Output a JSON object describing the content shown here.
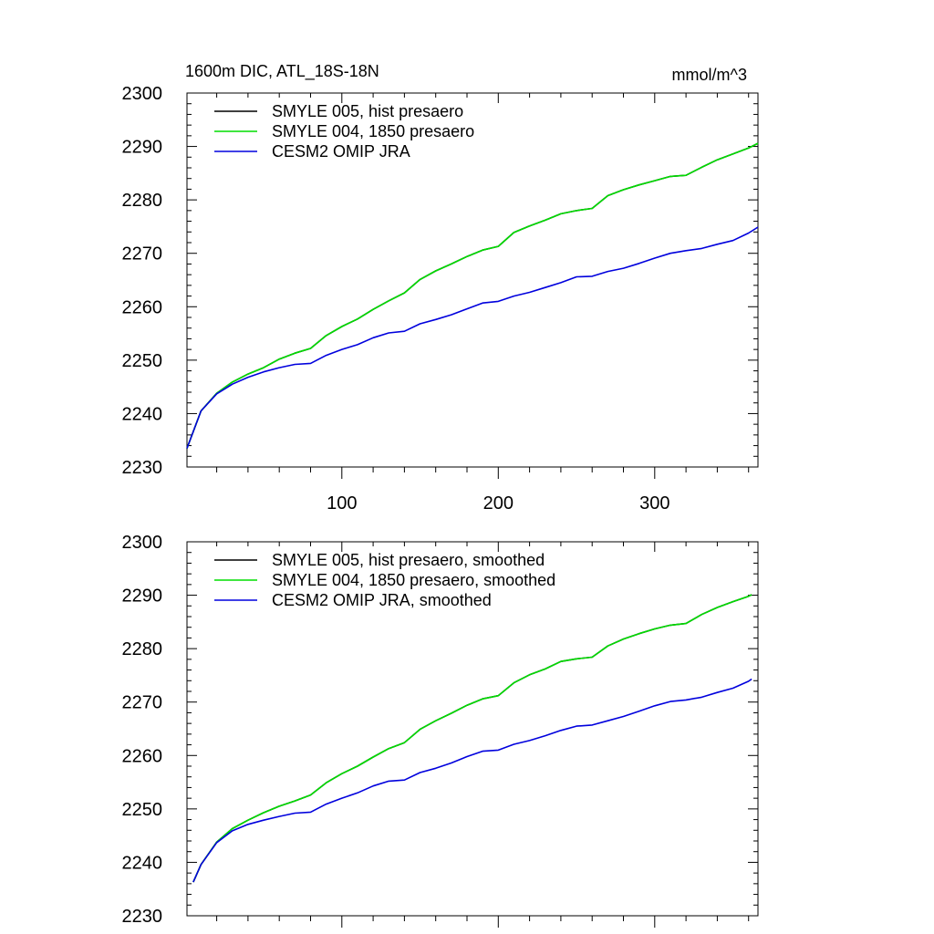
{
  "chart_data": [
    {
      "type": "line",
      "title": "1600m DIC, ATL_18S-18N",
      "units": "mmol/m^3",
      "xlim": [
        1,
        366
      ],
      "ylim": [
        2230,
        2300
      ],
      "xticks": [
        100,
        200,
        300
      ],
      "yticks": [
        2230,
        2240,
        2250,
        2260,
        2270,
        2280,
        2290,
        2300
      ],
      "legend_position": "top-left",
      "series": [
        {
          "name": "SMYLE 005, hist presaero",
          "color": "#000000",
          "x": [
            1,
            10,
            20,
            30,
            40,
            50,
            60,
            70,
            80,
            90,
            100,
            110,
            120,
            130,
            140,
            150,
            160,
            170,
            180,
            190,
            200,
            210,
            220,
            230,
            240,
            250,
            260,
            270,
            280,
            290,
            300,
            310,
            320,
            330,
            340,
            350,
            360,
            366
          ],
          "values": [
            2233.5,
            2240.5,
            2243.8,
            2245.9,
            2247.4,
            2248.6,
            2250.2,
            2251.3,
            2252.2,
            2254.6,
            2256.3,
            2257.7,
            2259.5,
            2261.1,
            2262.6,
            2265.1,
            2266.7,
            2268.0,
            2269.4,
            2270.6,
            2271.3,
            2273.9,
            2275.1,
            2276.2,
            2277.4,
            2278.0,
            2278.4,
            2280.8,
            2281.9,
            2282.8,
            2283.6,
            2284.4,
            2284.6,
            2286.1,
            2287.5,
            2288.6,
            2289.7,
            2290.6
          ]
        },
        {
          "name": "SMYLE 004, 1850 presaero",
          "color": "#00dd00",
          "x": [
            1,
            10,
            20,
            30,
            40,
            50,
            60,
            70,
            80,
            90,
            100,
            110,
            120,
            130,
            140,
            150,
            160,
            170,
            180,
            190,
            200,
            210,
            220,
            230,
            240,
            250,
            260,
            270,
            280,
            290,
            300,
            310,
            320,
            330,
            340,
            350,
            360,
            366
          ],
          "values": [
            2233.5,
            2240.5,
            2243.8,
            2245.9,
            2247.4,
            2248.6,
            2250.2,
            2251.3,
            2252.2,
            2254.6,
            2256.3,
            2257.7,
            2259.5,
            2261.1,
            2262.6,
            2265.1,
            2266.7,
            2268.0,
            2269.4,
            2270.6,
            2271.3,
            2273.9,
            2275.1,
            2276.2,
            2277.4,
            2278.0,
            2278.4,
            2280.8,
            2281.9,
            2282.8,
            2283.6,
            2284.4,
            2284.6,
            2286.1,
            2287.5,
            2288.6,
            2289.7,
            2290.6
          ]
        },
        {
          "name": "CESM2 OMIP JRA",
          "color": "#0000dd",
          "x": [
            1,
            10,
            20,
            30,
            40,
            50,
            60,
            70,
            80,
            90,
            100,
            110,
            120,
            130,
            140,
            150,
            160,
            170,
            180,
            190,
            200,
            210,
            220,
            230,
            240,
            250,
            260,
            270,
            280,
            290,
            300,
            310,
            320,
            330,
            340,
            350,
            360,
            366
          ],
          "values": [
            2233.5,
            2240.5,
            2243.7,
            2245.5,
            2246.8,
            2247.8,
            2248.6,
            2249.2,
            2249.4,
            2250.9,
            2252.0,
            2252.9,
            2254.2,
            2255.1,
            2255.4,
            2256.8,
            2257.6,
            2258.5,
            2259.6,
            2260.7,
            2261.0,
            2262.0,
            2262.7,
            2263.6,
            2264.5,
            2265.6,
            2265.7,
            2266.6,
            2267.2,
            2268.1,
            2269.1,
            2270.0,
            2270.5,
            2270.9,
            2271.7,
            2272.4,
            2273.8,
            2274.9
          ]
        }
      ]
    },
    {
      "type": "line",
      "xlim": [
        1,
        366
      ],
      "ylim": [
        2230,
        2300
      ],
      "xticks": [
        100,
        200,
        300
      ],
      "yticks": [
        2230,
        2240,
        2250,
        2260,
        2270,
        2280,
        2290,
        2300
      ],
      "legend_position": "top-left",
      "series": [
        {
          "name": "SMYLE 005, hist presaero, smoothed",
          "color": "#000000",
          "x": [
            5,
            10,
            20,
            30,
            40,
            50,
            60,
            70,
            80,
            90,
            100,
            110,
            120,
            130,
            140,
            150,
            160,
            170,
            180,
            190,
            200,
            210,
            220,
            230,
            240,
            250,
            260,
            270,
            280,
            290,
            300,
            310,
            320,
            330,
            340,
            350,
            360,
            362
          ],
          "values": [
            2236.3,
            2239.6,
            2243.8,
            2246.3,
            2247.9,
            2249.3,
            2250.5,
            2251.5,
            2252.6,
            2254.9,
            2256.6,
            2258.0,
            2259.7,
            2261.3,
            2262.4,
            2264.9,
            2266.5,
            2267.9,
            2269.4,
            2270.6,
            2271.2,
            2273.6,
            2275.1,
            2276.2,
            2277.6,
            2278.1,
            2278.4,
            2280.5,
            2281.8,
            2282.8,
            2283.7,
            2284.4,
            2284.7,
            2286.4,
            2287.7,
            2288.8,
            2289.8,
            2290.1
          ]
        },
        {
          "name": "SMYLE 004, 1850 presaero, smoothed",
          "color": "#00dd00",
          "x": [
            5,
            10,
            20,
            30,
            40,
            50,
            60,
            70,
            80,
            90,
            100,
            110,
            120,
            130,
            140,
            150,
            160,
            170,
            180,
            190,
            200,
            210,
            220,
            230,
            240,
            250,
            260,
            270,
            280,
            290,
            300,
            310,
            320,
            330,
            340,
            350,
            360,
            362
          ],
          "values": [
            2236.3,
            2239.6,
            2243.8,
            2246.3,
            2247.9,
            2249.3,
            2250.5,
            2251.5,
            2252.6,
            2254.9,
            2256.6,
            2258.0,
            2259.7,
            2261.3,
            2262.4,
            2264.9,
            2266.5,
            2267.9,
            2269.4,
            2270.6,
            2271.2,
            2273.6,
            2275.1,
            2276.2,
            2277.6,
            2278.1,
            2278.4,
            2280.5,
            2281.8,
            2282.8,
            2283.7,
            2284.4,
            2284.7,
            2286.4,
            2287.7,
            2288.8,
            2289.8,
            2290.1
          ]
        },
        {
          "name": "CESM2 OMIP JRA, smoothed",
          "color": "#0000dd",
          "x": [
            5,
            10,
            20,
            30,
            40,
            50,
            60,
            70,
            80,
            90,
            100,
            110,
            120,
            130,
            140,
            150,
            160,
            170,
            180,
            190,
            200,
            210,
            220,
            230,
            240,
            250,
            260,
            270,
            280,
            290,
            300,
            310,
            320,
            330,
            340,
            350,
            360,
            362
          ],
          "values": [
            2236.3,
            2239.6,
            2243.7,
            2245.9,
            2247.1,
            2247.9,
            2248.6,
            2249.2,
            2249.4,
            2250.9,
            2252.0,
            2253.0,
            2254.3,
            2255.2,
            2255.4,
            2256.8,
            2257.6,
            2258.6,
            2259.8,
            2260.8,
            2261.0,
            2262.1,
            2262.8,
            2263.7,
            2264.7,
            2265.5,
            2265.7,
            2266.5,
            2267.3,
            2268.3,
            2269.3,
            2270.1,
            2270.4,
            2270.9,
            2271.8,
            2272.6,
            2273.9,
            2274.3
          ]
        }
      ]
    }
  ]
}
